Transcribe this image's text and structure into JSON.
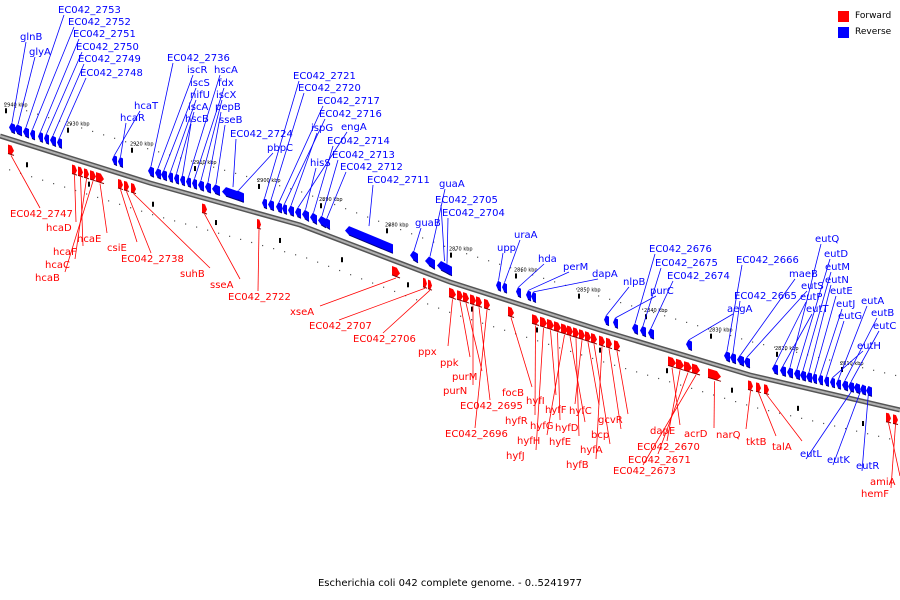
{
  "caption": "Escherichia coli 042 complete genome. - 0..5241977",
  "legend": [
    {
      "label": "Forward",
      "color": "#ff0000"
    },
    {
      "label": "Reverse",
      "color": "#0000ff"
    }
  ],
  "colors": {
    "forward": "#ff0000",
    "reverse": "#0000ff",
    "axis": "#808080"
  },
  "kbp_ticks": [
    "2940 kbp",
    "2930 kbp",
    "2920 kbp",
    "2910 kbp",
    "2900 kbp",
    "2890 kbp",
    "2880 kbp",
    "2870 kbp",
    "2860 kbp",
    "2850 kbp",
    "2840 kbp",
    "2830 kbp",
    "2820 kbp",
    "2810 kbp"
  ],
  "reverse_genes": [
    "glnB",
    "glyA",
    "EC042_2753",
    "EC042_2752",
    "EC042_2751",
    "EC042_2750",
    "EC042_2749",
    "EC042_2748",
    "hcaT",
    "hcaR",
    "EC042_2736",
    "iscR",
    "iscS",
    "nifU",
    "iscA",
    "hscB",
    "hscA",
    "fdx",
    "iscX",
    "pepB",
    "sseB",
    "EC042_2724",
    "pbpC",
    "EC042_2721",
    "EC042_2720",
    "EC042_2717",
    "EC042_2716",
    "ispG",
    "engA",
    "hisS",
    "EC042_2714",
    "EC042_2713",
    "EC042_2712",
    "EC042_2711",
    "guaB",
    "guaA",
    "EC042_2705",
    "EC042_2704",
    "upp",
    "uraA",
    "hda",
    "perM",
    "dapA",
    "nlpB",
    "purC",
    "EC042_2676",
    "EC042_2675",
    "EC042_2674",
    "aegA",
    "EC042_2666",
    "EC042_2665",
    "maeB",
    "eutS",
    "eutP",
    "eutT",
    "eutQ",
    "eutD",
    "eutM",
    "eutN",
    "eutE",
    "eutJ",
    "eutG",
    "eutH",
    "eutA",
    "eutB",
    "eutC",
    "eutL",
    "eutK",
    "eutR"
  ],
  "forward_genes": [
    "EC042_2747",
    "hcaD",
    "hcaF",
    "hcaC",
    "hcaB",
    "hcaE",
    "csiE",
    "EC042_2738",
    "suhB",
    "sseA",
    "EC042_2722",
    "xseA",
    "EC042_2707",
    "EC042_2706",
    "ppx",
    "ppk",
    "purM",
    "purN",
    "EC042_2695",
    "EC042_2696",
    "focB",
    "hyfR",
    "hyfJ",
    "hyfI",
    "hyfG",
    "hyfH",
    "hyfD",
    "hyfE",
    "hyfF",
    "hyfC",
    "hyfA",
    "hyfB",
    "bcp",
    "gcvR",
    "dapE",
    "EC042_2670",
    "EC042_2671",
    "EC042_2673",
    "acrD",
    "narQ",
    "tktB",
    "talA",
    "amiA",
    "hemF"
  ]
}
